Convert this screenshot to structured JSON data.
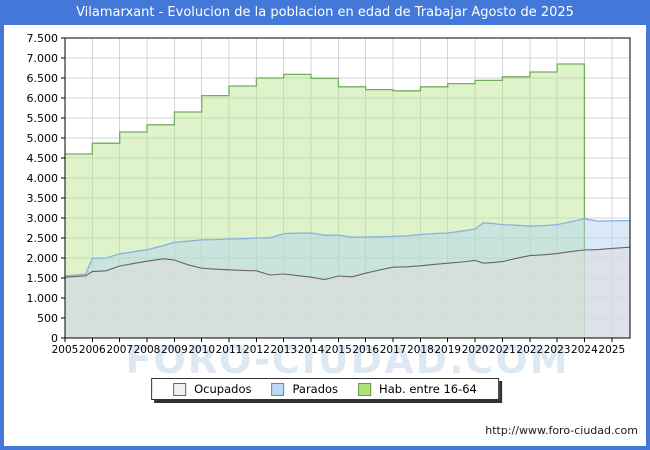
{
  "watermark": "FORO-CIUDAD.COM",
  "footer": {
    "url_text": "http://www.foro-ciudad.com"
  },
  "colors": {
    "title_bar": "#4478d8",
    "outer_border": "#4478d8",
    "plot_frame": "#000000",
    "gridline": "#d4d4d4",
    "watermark_text": "#c3d6ee"
  },
  "legend": [
    {
      "label": "Ocupados",
      "swatch_color": "#f0f0f0",
      "swatch_border": "#666666"
    },
    {
      "label": "Parados",
      "swatch_color": "#bcd8f4",
      "swatch_border": "#6688bb"
    },
    {
      "label": "Hab. entre 16-64",
      "swatch_color": "#b3e07e",
      "swatch_border": "#669944"
    }
  ],
  "chart_data": {
    "type": "area",
    "title": "Vilamarxant - Evolucion de la poblacion en edad de Trabajar Agosto de 2025",
    "xlabel": "",
    "ylabel": "",
    "legend_position": "bottom",
    "grid": true,
    "x_axis": {
      "range": [
        2005,
        2025.667
      ],
      "tick_labels": [
        "2005",
        "2006",
        "2007",
        "2008",
        "2009",
        "2010",
        "2011",
        "2012",
        "2013",
        "2014",
        "2015",
        "2016",
        "2017",
        "2018",
        "2019",
        "2020",
        "2021",
        "2022",
        "2023",
        "2024",
        "2025"
      ]
    },
    "y_axis": {
      "min": 0,
      "max": 7500,
      "step": 500,
      "tick_labels": [
        "0",
        "500",
        "1.000",
        "1.500",
        "2.000",
        "2.500",
        "3.000",
        "3.500",
        "4.000",
        "4.500",
        "5.000",
        "5.500",
        "6.000",
        "6.500",
        "7.000",
        "7.500"
      ]
    },
    "monthly_x": [
      2005,
      2005.75,
      2006,
      2006.5,
      2007,
      2007.5,
      2008,
      2008.6,
      2009,
      2009.5,
      2010,
      2010.5,
      2011,
      2011.5,
      2012,
      2012.5,
      2013,
      2013.5,
      2014,
      2014.5,
      2015,
      2015.5,
      2016,
      2016.5,
      2017,
      2017.5,
      2018,
      2018.5,
      2019,
      2019.5,
      2020,
      2020.3,
      2020.7,
      2021,
      2021.5,
      2022,
      2022.5,
      2023,
      2023.5,
      2024,
      2024.5,
      2025,
      2025.667
    ],
    "series": [
      {
        "name": "Hab. entre 16-64",
        "render": "step-annual",
        "fill": "#b7e489",
        "fill_opacity": 0.45,
        "line": "#74ad5c",
        "years": [
          2005,
          2006,
          2007,
          2008,
          2009,
          2010,
          2011,
          2012,
          2013,
          2014,
          2015,
          2016,
          2017,
          2018,
          2019,
          2020,
          2021,
          2022,
          2023
        ],
        "values": [
          4600,
          4870,
          5150,
          5330,
          5650,
          6060,
          6300,
          6500,
          6590,
          6490,
          6280,
          6210,
          6180,
          6280,
          6360,
          6440,
          6530,
          6650,
          6850
        ]
      },
      {
        "name": "Parados",
        "render": "area-stacked-on-ocupados",
        "fill": "#b4d4f0",
        "fill_opacity": 0.5,
        "line": "#8cb0de",
        "values": [
          30,
          45,
          330,
          320,
          305,
          295,
          285,
          330,
          440,
          590,
          710,
          740,
          770,
          790,
          820,
          930,
          1010,
          1060,
          1105,
          1110,
          1020,
          990,
          905,
          830,
          770,
          775,
          780,
          770,
          755,
          770,
          785,
          1010,
          970,
          925,
          830,
          735,
          730,
          725,
          745,
          780,
          710,
          690,
          665
        ]
      },
      {
        "name": "Ocupados",
        "render": "area",
        "fill": "#dedede",
        "fill_opacity": 0.6,
        "line": "#666666",
        "values": [
          1520,
          1555,
          1660,
          1680,
          1800,
          1860,
          1920,
          1980,
          1950,
          1830,
          1745,
          1720,
          1705,
          1690,
          1680,
          1575,
          1600,
          1560,
          1520,
          1460,
          1550,
          1530,
          1620,
          1700,
          1770,
          1780,
          1805,
          1840,
          1870,
          1900,
          1940,
          1870,
          1890,
          1910,
          1990,
          2060,
          2080,
          2110,
          2160,
          2200,
          2210,
          2240,
          2270
        ]
      }
    ]
  }
}
